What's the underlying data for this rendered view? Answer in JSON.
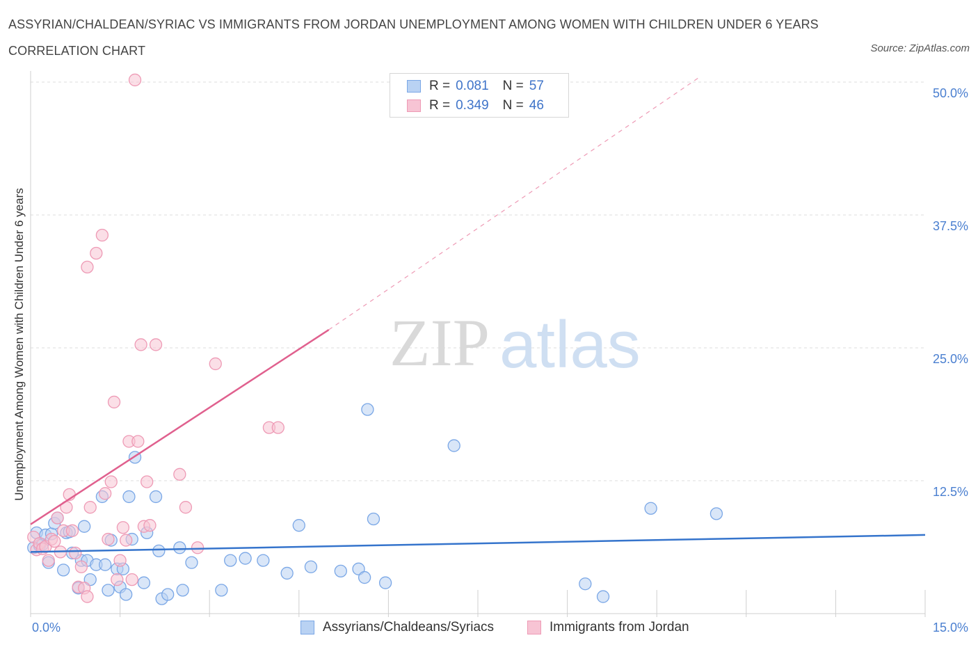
{
  "title": "ASSYRIAN/CHALDEAN/SYRIAC VS IMMIGRANTS FROM JORDAN UNEMPLOYMENT AMONG WOMEN WITH CHILDREN UNDER 6 YEARS CORRELATION CHART",
  "source": "Source: ZipAtlas.com",
  "watermark": {
    "zip": "ZIP",
    "atlas": "atlas"
  },
  "legend": {
    "series1": {
      "r_label": "R =",
      "r_value": "0.081",
      "n_label": "N =",
      "n_value": "57"
    },
    "series2": {
      "r_label": "R =",
      "r_value": "0.349",
      "n_label": "N =",
      "n_value": "46"
    }
  },
  "colors": {
    "blue_fill": "#b9d2f3",
    "blue_stroke": "#7aa7e6",
    "blue_line": "#3574cc",
    "pink_fill": "#f7c4d4",
    "pink_stroke": "#ee9ab5",
    "pink_line": "#e0608e",
    "grid": "#dcdcdc",
    "tick_text": "#4a7fd0"
  },
  "chart_data": {
    "type": "scatter",
    "ylabel": "Unemployment Among Women with Children Under 6 years",
    "xlim": [
      0,
      15
    ],
    "ylim": [
      0,
      50
    ],
    "x_tick_labels": [
      "0.0%",
      "15.0%"
    ],
    "y_ticks": [
      12.5,
      25.0,
      37.5,
      50.0
    ],
    "y_tick_labels": [
      "12.5%",
      "25.0%",
      "37.5%",
      "50.0%"
    ],
    "grid": true,
    "series": [
      {
        "name": "Assyrians/Chaldeans/Syriacs",
        "trend": {
          "x0": 0,
          "y0": 5.8,
          "x1": 15,
          "y1": 7.4,
          "dashed_to": null
        },
        "points": [
          [
            0.05,
            6.2
          ],
          [
            0.1,
            7.6
          ],
          [
            0.15,
            6.4
          ],
          [
            0.2,
            6.5
          ],
          [
            0.25,
            7.4
          ],
          [
            0.3,
            4.8
          ],
          [
            0.35,
            7.5
          ],
          [
            0.4,
            8.5
          ],
          [
            0.45,
            9.0
          ],
          [
            0.55,
            4.1
          ],
          [
            0.6,
            7.6
          ],
          [
            0.65,
            7.7
          ],
          [
            0.7,
            5.7
          ],
          [
            0.8,
            2.4
          ],
          [
            0.85,
            5.0
          ],
          [
            0.9,
            8.2
          ],
          [
            0.95,
            5.0
          ],
          [
            1.0,
            3.2
          ],
          [
            1.1,
            4.6
          ],
          [
            1.2,
            11.0
          ],
          [
            1.25,
            4.6
          ],
          [
            1.3,
            2.2
          ],
          [
            1.35,
            6.9
          ],
          [
            1.45,
            4.2
          ],
          [
            1.5,
            2.5
          ],
          [
            1.55,
            4.2
          ],
          [
            1.6,
            1.8
          ],
          [
            1.65,
            11.0
          ],
          [
            1.7,
            7.0
          ],
          [
            1.75,
            14.7
          ],
          [
            1.9,
            2.9
          ],
          [
            1.95,
            7.6
          ],
          [
            2.1,
            11.0
          ],
          [
            2.15,
            5.9
          ],
          [
            2.2,
            1.4
          ],
          [
            2.3,
            1.8
          ],
          [
            2.5,
            6.2
          ],
          [
            2.55,
            2.2
          ],
          [
            2.7,
            4.8
          ],
          [
            3.2,
            2.2
          ],
          [
            3.35,
            5.0
          ],
          [
            3.6,
            5.2
          ],
          [
            3.9,
            5.0
          ],
          [
            4.3,
            3.8
          ],
          [
            4.5,
            8.3
          ],
          [
            4.7,
            4.4
          ],
          [
            5.2,
            4.0
          ],
          [
            5.5,
            4.2
          ],
          [
            5.6,
            3.4
          ],
          [
            5.65,
            19.2
          ],
          [
            5.75,
            8.9
          ],
          [
            5.95,
            2.9
          ],
          [
            7.1,
            15.8
          ],
          [
            9.3,
            2.8
          ],
          [
            9.6,
            1.6
          ],
          [
            10.4,
            9.9
          ],
          [
            11.5,
            9.4
          ]
        ]
      },
      {
        "name": "Immigrants from Jordan",
        "trend": {
          "x0": 0,
          "y0": 8.4,
          "x1": 5.0,
          "y1": 26.7,
          "dashed_to": [
            11.2,
            50.4
          ]
        },
        "points": [
          [
            0.05,
            7.2
          ],
          [
            0.1,
            6.0
          ],
          [
            0.15,
            6.6
          ],
          [
            0.2,
            6.1
          ],
          [
            0.25,
            6.3
          ],
          [
            0.3,
            5.0
          ],
          [
            0.35,
            7.0
          ],
          [
            0.4,
            6.8
          ],
          [
            0.45,
            9.0
          ],
          [
            0.5,
            5.8
          ],
          [
            0.55,
            7.8
          ],
          [
            0.6,
            10.0
          ],
          [
            0.65,
            11.2
          ],
          [
            0.7,
            7.8
          ],
          [
            0.75,
            5.7
          ],
          [
            0.8,
            2.5
          ],
          [
            0.85,
            4.4
          ],
          [
            0.9,
            2.4
          ],
          [
            0.95,
            1.6
          ],
          [
            0.95,
            32.6
          ],
          [
            1.0,
            10.0
          ],
          [
            1.1,
            33.9
          ],
          [
            1.2,
            35.6
          ],
          [
            1.25,
            11.3
          ],
          [
            1.3,
            7.0
          ],
          [
            1.35,
            12.4
          ],
          [
            1.4,
            19.9
          ],
          [
            1.45,
            3.2
          ],
          [
            1.5,
            5.0
          ],
          [
            1.55,
            8.1
          ],
          [
            1.6,
            6.9
          ],
          [
            1.65,
            16.2
          ],
          [
            1.7,
            3.2
          ],
          [
            1.75,
            50.2
          ],
          [
            1.8,
            16.2
          ],
          [
            1.85,
            25.3
          ],
          [
            1.9,
            8.2
          ],
          [
            1.95,
            12.4
          ],
          [
            2.0,
            8.3
          ],
          [
            2.1,
            25.3
          ],
          [
            2.5,
            13.1
          ],
          [
            2.6,
            10.0
          ],
          [
            2.8,
            6.2
          ],
          [
            3.1,
            23.5
          ],
          [
            4.0,
            17.5
          ],
          [
            4.15,
            17.5
          ]
        ]
      }
    ]
  }
}
